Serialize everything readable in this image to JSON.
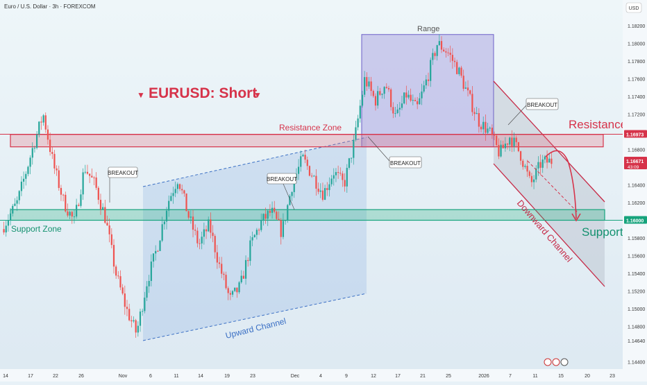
{
  "header": {
    "symbol_title": "Euro / U.S. Dollar · 3h · FOREXCOM",
    "currency": "USD"
  },
  "annotations": {
    "headline": "EURUSD: Short",
    "resistance_zone": "Resistance Zone",
    "support_zone": "Support Zone",
    "range": "Range",
    "resistance": "Resistance",
    "support": "Support",
    "upward_channel": "Upward Channel",
    "downward_channel": "Downward Channel",
    "breakouts": [
      "BREAKOUT",
      "BREAKOUT",
      "BREAKOUT",
      "BREAKOUT"
    ]
  },
  "price_badges": [
    {
      "price": "1.16973",
      "color": "#d6334a"
    },
    {
      "price": "1.16671",
      "sub": "43:09",
      "color": "#d6334a"
    },
    {
      "price": "1.16000",
      "color": "#16a37c"
    }
  ],
  "colors": {
    "up": "#26a69a",
    "down": "#ef5350",
    "resistance": "#d6334a",
    "support": "#16a37c",
    "range": "#7b6fd0",
    "channel": "#3a6fc4"
  },
  "chart_data": {
    "type": "candlestick",
    "y_ticks": [
      "1.18200",
      "1.18000",
      "1.17800",
      "1.17600",
      "1.17400",
      "1.17200",
      "1.16800",
      "1.16400",
      "1.16200",
      "1.15800",
      "1.15600",
      "1.15400",
      "1.15200",
      "1.15000",
      "1.14800",
      "1.14640",
      "1.14400"
    ],
    "x_ticks": [
      "14",
      "17",
      "22",
      "26",
      "Nov",
      "6",
      "11",
      "14",
      "19",
      "23",
      "Dec",
      "4",
      "9",
      "12",
      "17",
      "21",
      "25",
      "2026",
      "7",
      "11",
      "15",
      "20",
      "23"
    ],
    "resistance_zone": [
      1.1683,
      1.1697
    ],
    "support_zone": [
      1.16,
      1.1612
    ],
    "range_box": {
      "top": 1.181,
      "bottom": 1.1683
    },
    "path": [
      [
        0,
        1.159
      ],
      [
        3,
        1.162
      ],
      [
        6,
        1.1682
      ],
      [
        8,
        1.172
      ],
      [
        10,
        1.1662
      ],
      [
        12,
        1.162
      ],
      [
        14,
        1.1598
      ],
      [
        16,
        1.166
      ],
      [
        18,
        1.164
      ],
      [
        20,
        1.1602
      ],
      [
        22,
        1.154
      ],
      [
        24,
        1.15
      ],
      [
        26,
        1.1472
      ],
      [
        28,
        1.153
      ],
      [
        30,
        1.157
      ],
      [
        32,
        1.162
      ],
      [
        34,
        1.1648
      ],
      [
        36,
        1.1605
      ],
      [
        38,
        1.1572
      ],
      [
        40,
        1.1595
      ],
      [
        42,
        1.1548
      ],
      [
        44,
        1.151
      ],
      [
        46,
        1.1525
      ],
      [
        48,
        1.1572
      ],
      [
        50,
        1.1598
      ],
      [
        52,
        1.161
      ],
      [
        54,
        1.1586
      ],
      [
        56,
        1.164
      ],
      [
        58,
        1.167
      ],
      [
        60,
        1.165
      ],
      [
        62,
        1.163
      ],
      [
        64,
        1.1655
      ],
      [
        66,
        1.164
      ],
      [
        68,
        1.169
      ],
      [
        70,
        1.176
      ],
      [
        72,
        1.1735
      ],
      [
        74,
        1.1755
      ],
      [
        76,
        1.1715
      ],
      [
        78,
        1.1742
      ],
      [
        80,
        1.1725
      ],
      [
        82,
        1.176
      ],
      [
        84,
        1.18
      ],
      [
        86,
        1.179
      ],
      [
        88,
        1.177
      ],
      [
        90,
        1.174
      ],
      [
        92,
        1.1712
      ],
      [
        94,
        1.17
      ],
      [
        96,
        1.1675
      ],
      [
        98,
        1.1695
      ],
      [
        100,
        1.1675
      ],
      [
        102,
        1.164
      ],
      [
        104,
        1.1665
      ],
      [
        106,
        1.1667
      ]
    ]
  }
}
